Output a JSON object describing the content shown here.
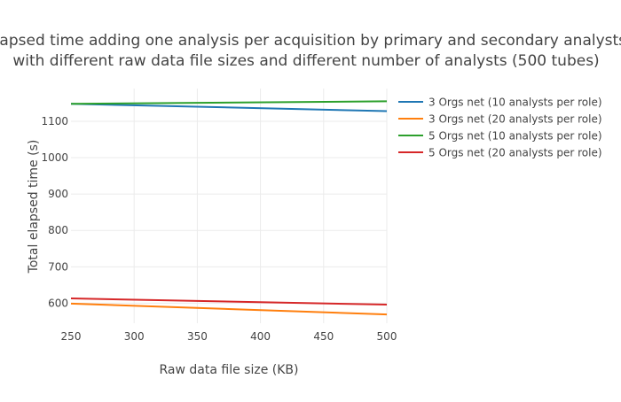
{
  "chart_data": {
    "type": "line",
    "title_lines": [
      "Elapsed time adding one analysis per acquisition by primary and secondary analysts",
      "with different raw data file sizes and different number of analysts (500 tubes)"
    ],
    "xlabel": "Raw data file size (KB)",
    "ylabel": "Total elapsed time (s)",
    "xlim": [
      250,
      500
    ],
    "ylim": [
      545,
      1190
    ],
    "xticks": [
      250,
      300,
      350,
      400,
      450,
      500
    ],
    "yticks": [
      600,
      700,
      800,
      900,
      1000,
      1100
    ],
    "ytick_labels": [
      "600",
      "700",
      "800",
      "900",
      "1000",
      "1100"
    ],
    "grid": true,
    "legend_position": "right",
    "series": [
      {
        "name": "3 Orgs net (10 analysts per role)",
        "color": "#1f77b4",
        "x": [
          250,
          500
        ],
        "y": [
          1148,
          1128
        ]
      },
      {
        "name": "3 Orgs net (20 analysts per role)",
        "color": "#ff7f0e",
        "x": [
          250,
          500
        ],
        "y": [
          599,
          569
        ]
      },
      {
        "name": "5 Orgs net (10 analysts per role)",
        "color": "#2ca02c",
        "x": [
          250,
          500
        ],
        "y": [
          1148,
          1155
        ]
      },
      {
        "name": "5 Orgs net (20 analysts per role)",
        "color": "#d62728",
        "x": [
          250,
          500
        ],
        "y": [
          613,
          596
        ]
      }
    ]
  }
}
